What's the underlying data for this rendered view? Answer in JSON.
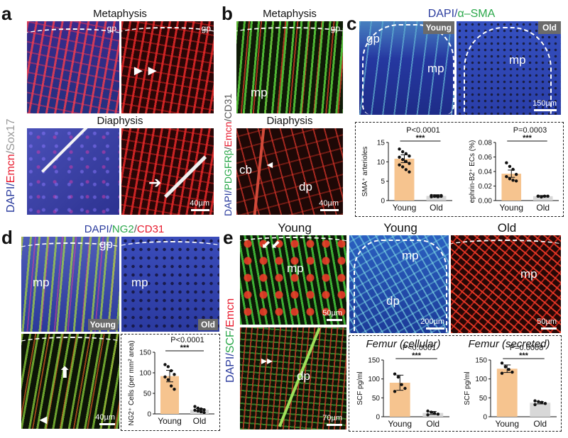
{
  "panels": {
    "a": {
      "label": "a",
      "title_top": "Metaphysis",
      "title_bottom": "Diaphysis",
      "side_label": {
        "dapi": "DAPI/",
        "emcn": "Emcn",
        "sep": "/",
        "sox17": "Sox17"
      },
      "gp1": "gp",
      "gp2": "gp",
      "scale": "40µm"
    },
    "b": {
      "label": "b",
      "title_top": "Metaphysis",
      "title_bottom": "Diaphysis",
      "side_label": {
        "dapi": "DAPI/",
        "pdgfrb": "PDGFRβ",
        "sep1": "/",
        "emcn": "Emcn",
        "sep2": "/CD31"
      },
      "gp": "gp",
      "mp": "mp",
      "cb": "cb",
      "dp": "dp",
      "scale": "40µm"
    },
    "c": {
      "label": "c",
      "title_dapi": "DAPI/",
      "title_sma": "α–SMA",
      "gp": "gp",
      "mp1": "mp",
      "mp2": "mp",
      "young": "Young",
      "old": "Old",
      "scale": "150µm"
    },
    "d": {
      "label": "d",
      "title_dapi": "DAPI/",
      "title_ng2": "NG2",
      "title_sep": "/",
      "title_cd31": "CD31",
      "gp": "gp",
      "mp1": "mp",
      "mp2": "mp",
      "young": "Young",
      "old": "Old",
      "scale": "40µm"
    },
    "e": {
      "label": "e",
      "title_young1": "Young",
      "title_young2": "Young",
      "title_old": "Old",
      "side_label": {
        "dapi": "DAPI/",
        "scf": "SCF",
        "sep": "/",
        "emcn": "Emcn"
      },
      "mp1": "mp",
      "mp2": "mp",
      "mp3": "mp",
      "dp1": "dp",
      "dp2": "dp",
      "scale1": "50µm",
      "scale2": "200µm",
      "scale3": "50µm",
      "scale4": "70µm"
    }
  },
  "colors": {
    "red": "#e8192c",
    "green": "#2aa84a",
    "blue": "#2b3c9e",
    "bar_young": "#f6c48f",
    "bar_old": "#d8d8d8"
  },
  "chart_data": [
    {
      "type": "bar",
      "panel": "c-left",
      "categories": [
        "Young",
        "Old"
      ],
      "values": [
        10.8,
        1.2
      ],
      "errors": [
        1.0,
        0.3
      ],
      "points": [
        [
          13.3,
          12.6,
          12.1,
          11.5,
          11.2,
          10.6,
          10.1,
          9.6,
          9.2,
          8.7,
          8.0,
          7.4
        ],
        [
          1.0,
          1.1,
          1.2,
          1.1,
          1.3,
          1.2,
          1.0,
          1.3
        ]
      ],
      "ylabel": "SMA⁺ arterioles",
      "yticks": [
        0,
        5,
        10,
        15
      ],
      "ylim": [
        0,
        15
      ],
      "p_text": "P<0.0001",
      "sig": "***"
    },
    {
      "type": "bar",
      "panel": "c-right",
      "categories": [
        "Young",
        "Old"
      ],
      "values": [
        0.037,
        0.006
      ],
      "errors": [
        0.005,
        0.001
      ],
      "points": [
        [
          0.052,
          0.047,
          0.043,
          0.036,
          0.033,
          0.03,
          0.028,
          0.027
        ],
        [
          0.006,
          0.005,
          0.006,
          0.006,
          0.006
        ]
      ],
      "ylabel": "ephrin-B2⁺ ECs (%)",
      "yticks": [
        0,
        0.02,
        0.04,
        0.06,
        0.08
      ],
      "yticklabels": [
        "0.00",
        "0.02",
        "0.04",
        "0.06",
        "0.08"
      ],
      "ylim": [
        0,
        0.08
      ],
      "p_text": "P=0.0003",
      "sig": "***"
    },
    {
      "type": "bar",
      "panel": "d",
      "categories": [
        "Young",
        "Old"
      ],
      "values": [
        92,
        10
      ],
      "errors": [
        14,
        3
      ],
      "points": [
        [
          120,
          115,
          105,
          96,
          90,
          83,
          68,
          60
        ],
        [
          18,
          14,
          12,
          10,
          9,
          7,
          5,
          3
        ]
      ],
      "ylabel": "NG2⁺ Cells (per mm² area)",
      "yticks": [
        0,
        50,
        100,
        150
      ],
      "ylim": [
        0,
        150
      ],
      "p_text": "P<0.0001",
      "sig": "***"
    },
    {
      "type": "bar",
      "panel": "e-left",
      "title": "Femur (cellular)",
      "categories": [
        "Young",
        "Old"
      ],
      "values": [
        90,
        10
      ],
      "errors": [
        20,
        4
      ],
      "points": [
        [
          113,
          105,
          85,
          75,
          67
        ],
        [
          15,
          12,
          9,
          7,
          5
        ]
      ],
      "ylabel": "SCF pg/ml",
      "yticks": [
        0,
        50,
        100,
        150
      ],
      "ylim": [
        0,
        150
      ],
      "p_text": "P<0.0001",
      "sig": "***"
    },
    {
      "type": "bar",
      "panel": "e-right",
      "title": "Femur (secreted)",
      "categories": [
        "Young",
        "Old"
      ],
      "values": [
        127,
        37
      ],
      "errors": [
        10,
        3
      ],
      "points": [
        [
          142,
          132,
          125,
          118,
          115
        ],
        [
          42,
          40,
          38,
          35,
          32
        ]
      ],
      "ylabel": "SCF pg/ml",
      "yticks": [
        0,
        50,
        100,
        150
      ],
      "ylim": [
        0,
        150
      ],
      "p_text": "P=0.0008",
      "sig": "***"
    }
  ]
}
